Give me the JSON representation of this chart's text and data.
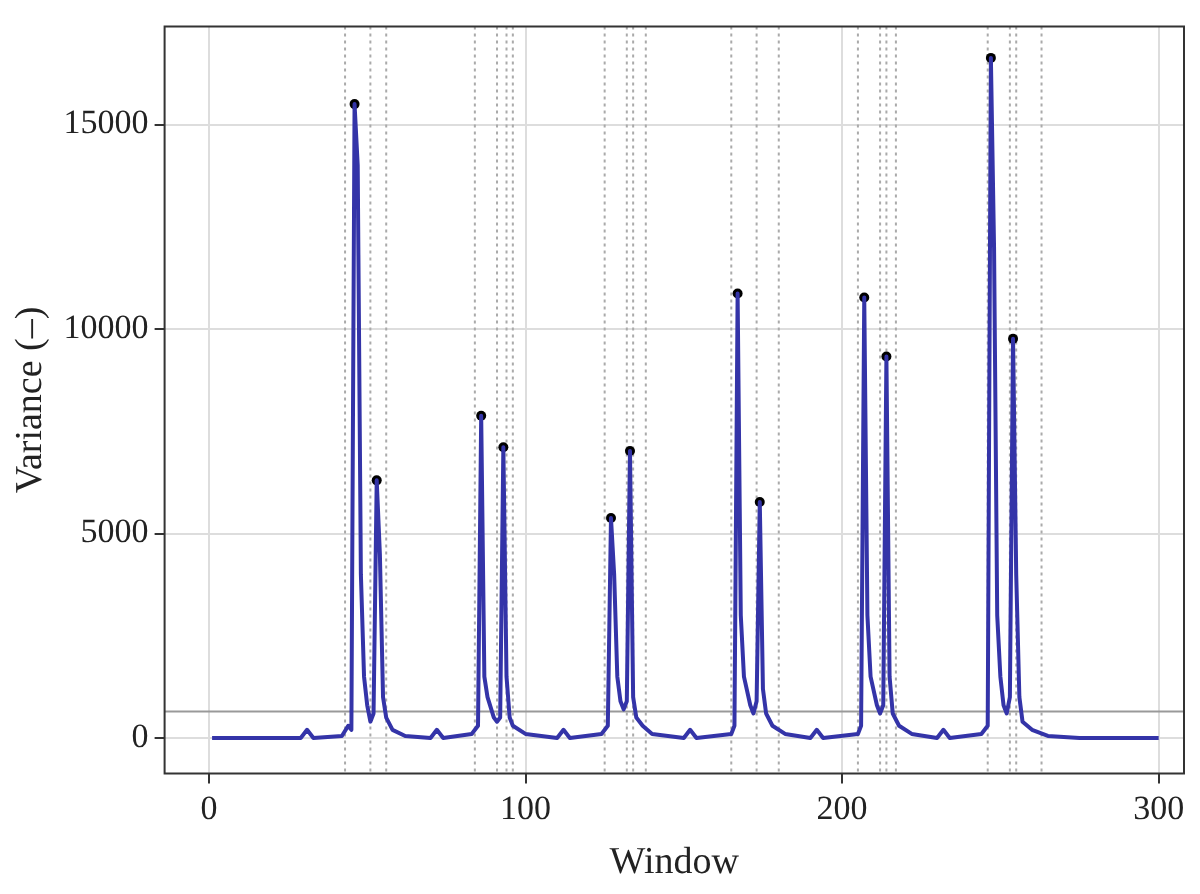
{
  "chart_data": {
    "type": "line",
    "xlabel": "Window",
    "ylabel": "Variance (–)",
    "xlim": [
      -14,
      308
    ],
    "xticks": [
      0,
      100,
      200,
      300
    ],
    "ylim": [
      -870,
      17400
    ],
    "yticks": [
      0,
      5000,
      10000,
      15000
    ],
    "grid": true,
    "legend": false,
    "series": [
      {
        "type": "line",
        "color": "#3434a8",
        "marker": "none",
        "line_style": "solid",
        "x": [
          1,
          29,
          31,
          33,
          42,
          44,
          45,
          46,
          47,
          48,
          49,
          50,
          51,
          52,
          53,
          54,
          55,
          56,
          58,
          62,
          70,
          72,
          74,
          83,
          85,
          86,
          87,
          88,
          90,
          91,
          92,
          93,
          94,
          95,
          96,
          100,
          110,
          112,
          114,
          124,
          126,
          127,
          128,
          129,
          130,
          131,
          132,
          133,
          134,
          135,
          137,
          140,
          150,
          152,
          154,
          165,
          166,
          167,
          168,
          169,
          171,
          172,
          173,
          174,
          175,
          176,
          178,
          182,
          190,
          192,
          194,
          205,
          206,
          207,
          208,
          209,
          211,
          212,
          213,
          214,
          215,
          216,
          218,
          222,
          230,
          232,
          234,
          244,
          246,
          247,
          248,
          249,
          250,
          251,
          252,
          253,
          254,
          255,
          256,
          257,
          260,
          265,
          275,
          300
        ],
        "values": [
          0,
          0,
          200,
          0,
          50,
          300,
          200,
          15500,
          14000,
          4000,
          1500,
          800,
          400,
          600,
          6300,
          4500,
          1000,
          500,
          200,
          50,
          0,
          200,
          0,
          100,
          300,
          7880,
          1500,
          1000,
          500,
          400,
          500,
          7110,
          1500,
          500,
          300,
          100,
          0,
          200,
          0,
          100,
          300,
          5380,
          4000,
          1500,
          900,
          700,
          900,
          7020,
          1000,
          500,
          300,
          100,
          0,
          200,
          0,
          100,
          300,
          10870,
          3000,
          1500,
          800,
          600,
          900,
          5770,
          1200,
          600,
          300,
          100,
          0,
          200,
          0,
          100,
          300,
          10770,
          3000,
          1500,
          800,
          600,
          800,
          9330,
          1500,
          600,
          300,
          100,
          0,
          200,
          0,
          100,
          300,
          16630,
          12000,
          3000,
          1500,
          800,
          600,
          1000,
          9760,
          4000,
          1000,
          400,
          200,
          50,
          0,
          0
        ]
      },
      {
        "type": "scatter",
        "color": "#000000",
        "marker": "circle",
        "x": [
          46,
          53,
          86,
          93,
          127,
          133,
          167,
          174,
          207,
          214,
          247,
          254
        ],
        "values": [
          15500,
          6300,
          7880,
          7110,
          5380,
          7020,
          10870,
          5770,
          10770,
          9330,
          16630,
          9760
        ]
      }
    ],
    "ref_lines": [
      {
        "axis": "y",
        "value": 650,
        "color": "#999999",
        "line_style": "solid"
      },
      {
        "axis": "x",
        "value": 43,
        "color": "#aaaaaa",
        "line_style": "dotted"
      },
      {
        "axis": "x",
        "value": 51,
        "color": "#aaaaaa",
        "line_style": "dotted"
      },
      {
        "axis": "x",
        "value": 56,
        "color": "#aaaaaa",
        "line_style": "dotted"
      },
      {
        "axis": "x",
        "value": 84,
        "color": "#aaaaaa",
        "line_style": "dotted"
      },
      {
        "axis": "x",
        "value": 91,
        "color": "#aaaaaa",
        "line_style": "dotted"
      },
      {
        "axis": "x",
        "value": 94,
        "color": "#aaaaaa",
        "line_style": "dotted"
      },
      {
        "axis": "x",
        "value": 96,
        "color": "#aaaaaa",
        "line_style": "dotted"
      },
      {
        "axis": "x",
        "value": 125,
        "color": "#aaaaaa",
        "line_style": "dotted"
      },
      {
        "axis": "x",
        "value": 132,
        "color": "#aaaaaa",
        "line_style": "dotted"
      },
      {
        "axis": "x",
        "value": 134,
        "color": "#aaaaaa",
        "line_style": "dotted"
      },
      {
        "axis": "x",
        "value": 138,
        "color": "#aaaaaa",
        "line_style": "dotted"
      },
      {
        "axis": "x",
        "value": 165,
        "color": "#aaaaaa",
        "line_style": "dotted"
      },
      {
        "axis": "x",
        "value": 173,
        "color": "#aaaaaa",
        "line_style": "dotted"
      },
      {
        "axis": "x",
        "value": 180,
        "color": "#aaaaaa",
        "line_style": "dotted"
      },
      {
        "axis": "x",
        "value": 205,
        "color": "#aaaaaa",
        "line_style": "dotted"
      },
      {
        "axis": "x",
        "value": 212,
        "color": "#aaaaaa",
        "line_style": "dotted"
      },
      {
        "axis": "x",
        "value": 214,
        "color": "#aaaaaa",
        "line_style": "dotted"
      },
      {
        "axis": "x",
        "value": 217,
        "color": "#aaaaaa",
        "line_style": "dotted"
      },
      {
        "axis": "x",
        "value": 246,
        "color": "#aaaaaa",
        "line_style": "dotted"
      },
      {
        "axis": "x",
        "value": 253,
        "color": "#aaaaaa",
        "line_style": "dotted"
      },
      {
        "axis": "x",
        "value": 255,
        "color": "#aaaaaa",
        "line_style": "dotted"
      },
      {
        "axis": "x",
        "value": 263,
        "color": "#aaaaaa",
        "line_style": "dotted"
      }
    ]
  }
}
